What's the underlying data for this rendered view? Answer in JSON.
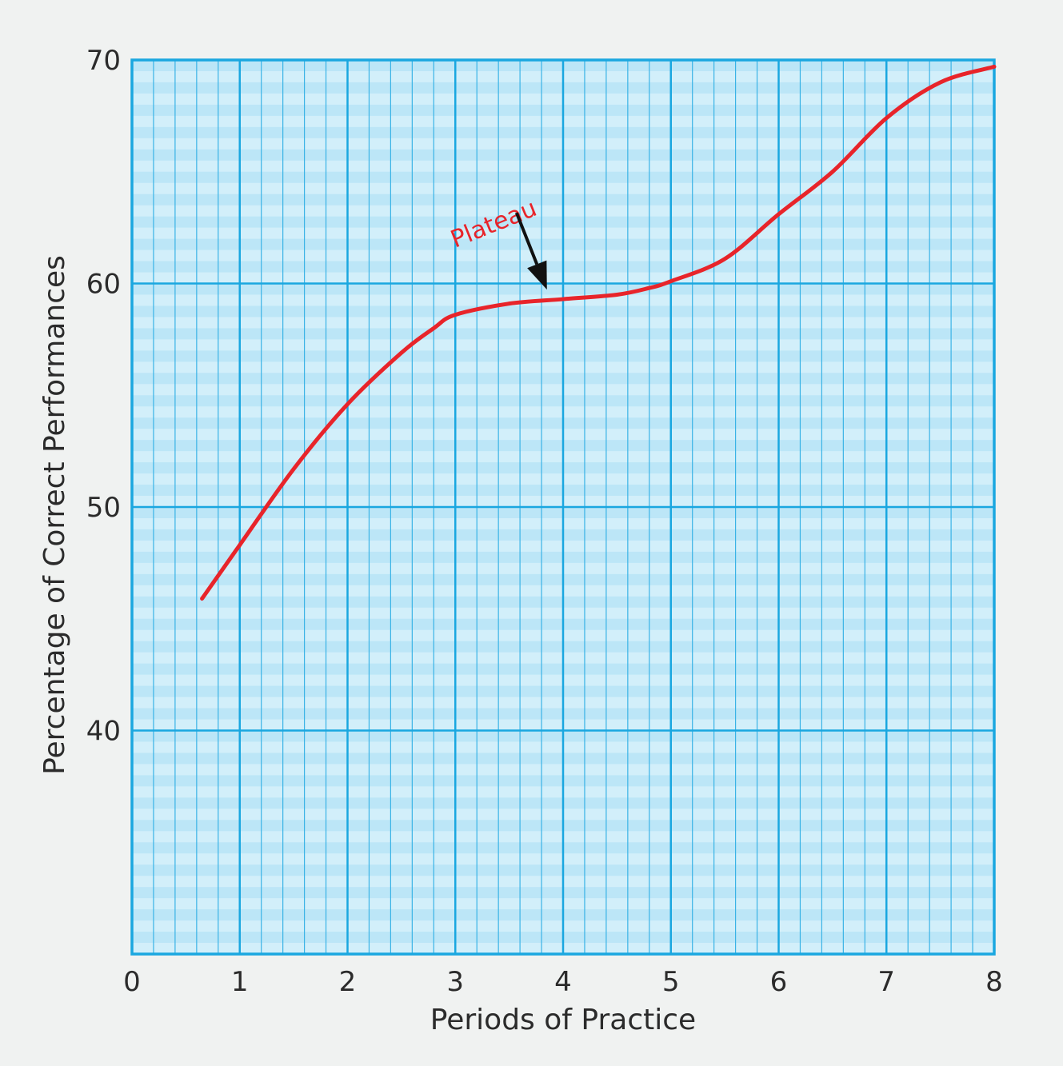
{
  "chart_data": {
    "type": "line",
    "title": "",
    "xlabel": "Periods of Practice",
    "ylabel": "Percentage of Correct Performances",
    "xlim": [
      0,
      8
    ],
    "ylim": [
      30,
      70
    ],
    "x_ticks": [
      "0",
      "1",
      "2",
      "3",
      "4",
      "5",
      "6",
      "7",
      "8"
    ],
    "y_ticks": [
      "40",
      "50",
      "60",
      "70"
    ],
    "y_tick_values": [
      40,
      50,
      60,
      70
    ],
    "grid": true,
    "series": [
      {
        "color": "#e8242a",
        "points": [
          [
            0.65,
            45.9
          ],
          [
            1.0,
            48.3
          ],
          [
            1.5,
            51.7
          ],
          [
            2.0,
            54.6
          ],
          [
            2.5,
            56.9
          ],
          [
            2.8,
            58.0
          ],
          [
            3.0,
            58.6
          ],
          [
            3.5,
            59.1
          ],
          [
            4.0,
            59.3
          ],
          [
            4.5,
            59.5
          ],
          [
            4.8,
            59.8
          ],
          [
            5.0,
            60.1
          ],
          [
            5.5,
            61.1
          ],
          [
            6.0,
            63.1
          ],
          [
            6.5,
            65.0
          ],
          [
            7.0,
            67.4
          ],
          [
            7.5,
            69.0
          ],
          [
            8.0,
            69.7
          ]
        ]
      }
    ],
    "annotations": [
      {
        "text": "Plateau",
        "color": "#e8242a",
        "points_to": [
          3.85,
          59.3
        ]
      }
    ],
    "colors": {
      "plot_background": "#d2effa",
      "band": "#bce6f7",
      "grid_major": "#1aa7e0",
      "grid_minor": "#3ab3e6",
      "line": "#e8242a",
      "arrow": "#111111"
    }
  }
}
